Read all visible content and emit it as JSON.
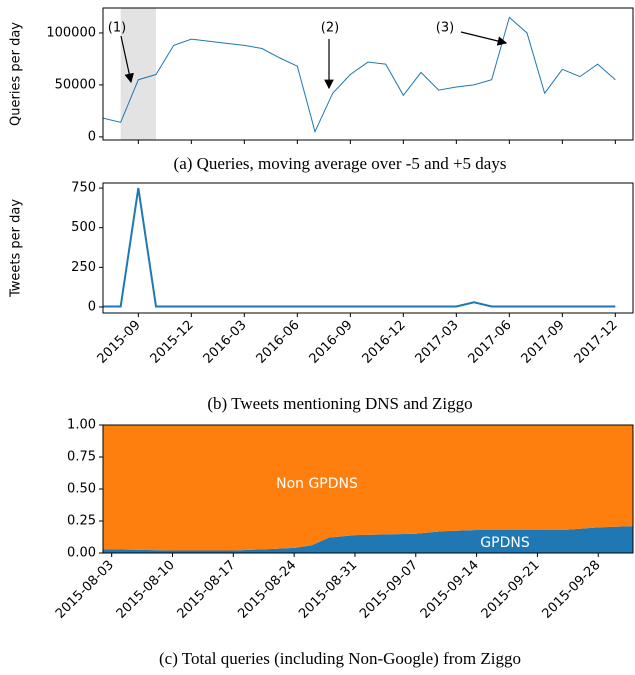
{
  "chart_data": [
    {
      "type": "line",
      "caption": "(a) Queries, moving average over -5 and +5 days",
      "y_label": "Queries per day",
      "x": [
        "2015-07",
        "2015-08",
        "2015-09",
        "2015-10",
        "2015-11",
        "2015-12",
        "2016-01",
        "2016-02",
        "2016-03",
        "2016-04",
        "2016-05",
        "2016-06",
        "2016-07",
        "2016-08",
        "2016-09",
        "2016-10",
        "2016-11",
        "2016-12",
        "2017-01",
        "2017-02",
        "2017-03",
        "2017-04",
        "2017-05",
        "2017-06",
        "2017-07",
        "2017-08",
        "2017-09",
        "2017-10",
        "2017-11",
        "2017-12"
      ],
      "values": [
        18000,
        14000,
        55000,
        60000,
        88000,
        94000,
        92000,
        90000,
        88000,
        85000,
        76000,
        68000,
        5000,
        42000,
        60000,
        72000,
        70000,
        40000,
        62000,
        45000,
        48000,
        50000,
        55000,
        115000,
        100000,
        42000,
        65000,
        58000,
        70000,
        55000
      ],
      "color": "#1f77b4",
      "highlight": [
        "2015-08",
        "2015-10"
      ],
      "annotations": [
        "(1)",
        "(2)",
        "(3)"
      ],
      "xlim": [
        "2015-07",
        "2018-01"
      ],
      "ylim": [
        -3000,
        124000
      ],
      "yticks": [
        0,
        50000,
        100000
      ]
    },
    {
      "type": "line",
      "caption": "(b) Tweets mentioning DNS and Ziggo",
      "y_label": "Tweets per day",
      "x": [
        "2015-07",
        "2015-08",
        "2015-09",
        "2015-10",
        "2015-11",
        "2015-12",
        "2016-01",
        "2016-02",
        "2016-03",
        "2016-04",
        "2016-05",
        "2016-06",
        "2016-07",
        "2016-08",
        "2016-09",
        "2016-10",
        "2016-11",
        "2016-12",
        "2017-01",
        "2017-02",
        "2017-03",
        "2017-04",
        "2017-05",
        "2017-06",
        "2017-07",
        "2017-08",
        "2017-09",
        "2017-10",
        "2017-11",
        "2017-12"
      ],
      "values": [
        3,
        3,
        750,
        3,
        3,
        3,
        3,
        3,
        3,
        3,
        3,
        3,
        3,
        3,
        3,
        3,
        3,
        3,
        3,
        3,
        3,
        30,
        3,
        3,
        3,
        3,
        3,
        3,
        3,
        3
      ],
      "color": "#1f77b4",
      "xlim": [
        "2015-07",
        "2018-01"
      ],
      "ylim": [
        -38,
        782
      ],
      "yticks": [
        0,
        250,
        500,
        750
      ],
      "xticks": [
        "2015-09",
        "2015-12",
        "2016-03",
        "2016-06",
        "2016-09",
        "2016-12",
        "2017-03",
        "2017-06",
        "2017-09",
        "2017-12"
      ]
    },
    {
      "type": "area",
      "caption": "(c) Total queries (including Non-Google) from Ziggo",
      "stacked": true,
      "x": [
        "2015-08-02",
        "2015-08-10",
        "2015-08-17",
        "2015-08-21",
        "2015-08-24",
        "2015-08-26",
        "2015-08-28",
        "2015-08-31",
        "2015-09-07",
        "2015-09-10",
        "2015-09-14",
        "2015-09-21",
        "2015-09-24",
        "2015-09-28",
        "2015-10-02"
      ],
      "series": [
        {
          "name": "GPDNS",
          "color": "#1f77b4",
          "values": [
            0.03,
            0.02,
            0.02,
            0.03,
            0.04,
            0.06,
            0.12,
            0.14,
            0.15,
            0.17,
            0.18,
            0.18,
            0.18,
            0.2,
            0.21
          ]
        },
        {
          "name": "Non GPDNS",
          "color": "#ff7f0e",
          "values": [
            0.97,
            0.98,
            0.98,
            0.97,
            0.96,
            0.94,
            0.88,
            0.86,
            0.85,
            0.83,
            0.82,
            0.82,
            0.82,
            0.8,
            0.79
          ]
        }
      ],
      "xlim": [
        "2015-08-02",
        "2015-10-02"
      ],
      "ylim": [
        0,
        1
      ],
      "yticks": [
        {
          "value": 0,
          "label": "0.00"
        },
        {
          "value": 0.25,
          "label": "0.25"
        },
        {
          "value": 0.5,
          "label": "0.50"
        },
        {
          "value": 0.75,
          "label": "0.75"
        },
        {
          "value": 1,
          "label": "1.00"
        }
      ],
      "xticks": [
        "2015-08-03",
        "2015-08-10",
        "2015-08-17",
        "2015-08-24",
        "2015-08-31",
        "2015-09-07",
        "2015-09-14",
        "2015-09-21",
        "2015-09-28"
      ]
    }
  ]
}
